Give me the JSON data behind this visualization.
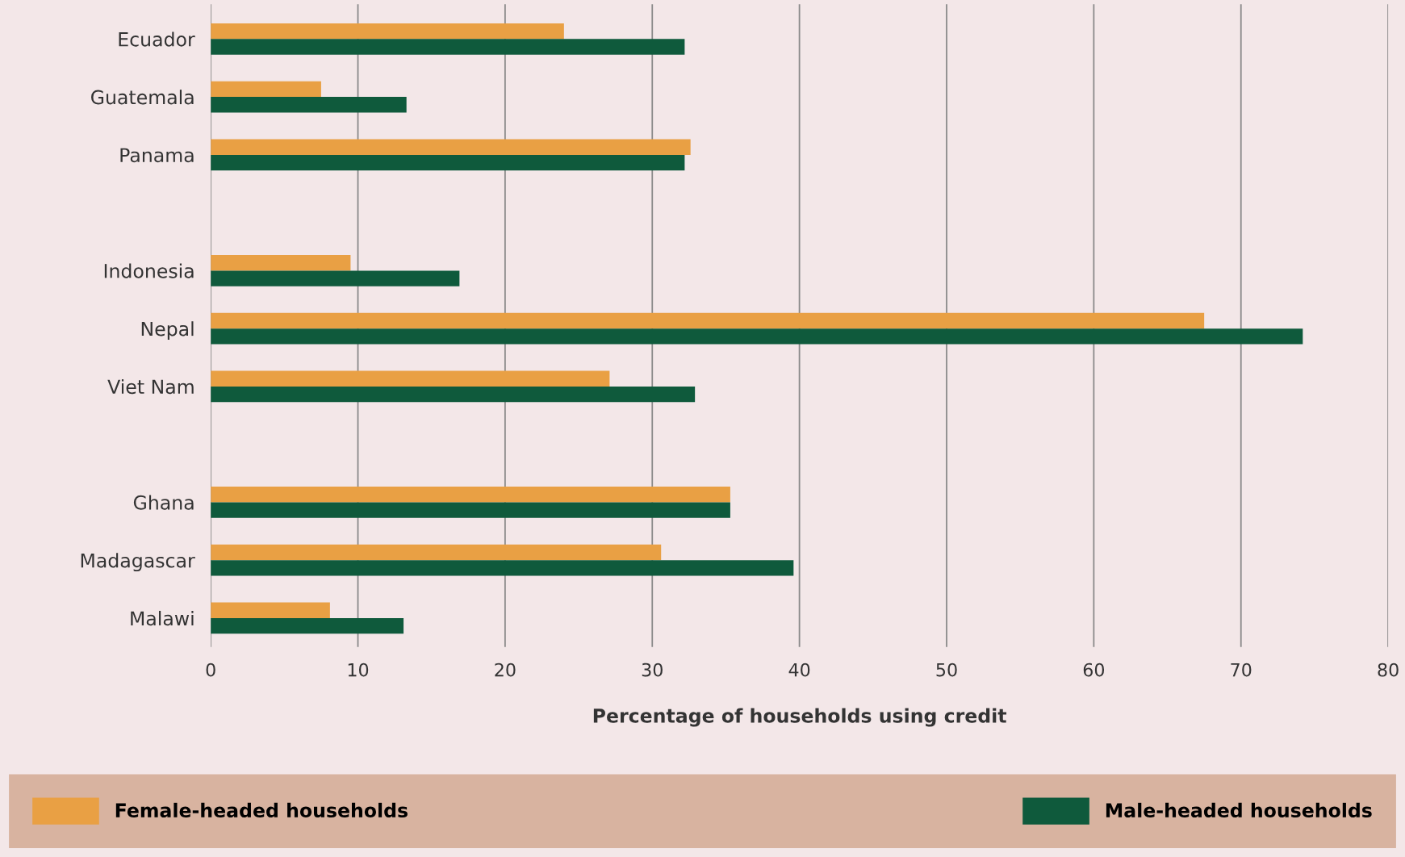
{
  "chart_data": {
    "type": "bar",
    "orientation": "horizontal",
    "xlabel": "Percentage of households using credit",
    "categories": [
      "Ecuador",
      "Guatemala",
      "Panama",
      null,
      "Indonesia",
      "Nepal",
      "Viet Nam",
      null,
      "Ghana",
      "Madagascar",
      "Malawi"
    ],
    "series": [
      {
        "name": "Female-headed households",
        "color": "#e9a044",
        "values": [
          24,
          7.5,
          32.6,
          null,
          9.5,
          67.5,
          27.1,
          null,
          35.3,
          30.6,
          8.1
        ]
      },
      {
        "name": "Male-headed households",
        "color": "#0f5a3c",
        "values": [
          32.2,
          13.3,
          32.2,
          null,
          16.9,
          74.2,
          32.9,
          null,
          35.3,
          39.6,
          13.1
        ]
      }
    ],
    "xlim": [
      0,
      80
    ],
    "xticks": [
      0,
      10,
      20,
      30,
      40,
      50,
      60,
      70,
      80
    ],
    "grid": "x",
    "legend": "bottom"
  }
}
